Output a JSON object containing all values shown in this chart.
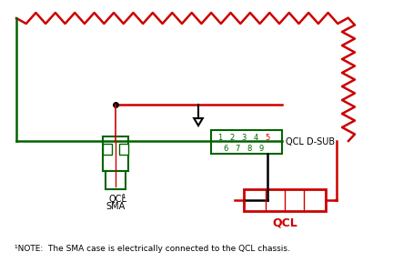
{
  "bg_color": "#ffffff",
  "green": "#006400",
  "red": "#cc0000",
  "black": "#000000",
  "note_text": "NOTE:  The SMA case is electrically connected to the QCL chassis.",
  "dsub_label": "QCL D-SUB",
  "qcl_label": "QCL",
  "sma_label_line1": "QCL",
  "sma_label_super": "1",
  "sma_label_line2": "SMA",
  "dsub_numbers_top": [
    "1",
    "2",
    "3",
    "4",
    "5"
  ],
  "dsub_numbers_bot": [
    "6",
    "7",
    "8",
    "9"
  ],
  "fig_w": 4.32,
  "fig_h": 2.88,
  "dpi": 100
}
